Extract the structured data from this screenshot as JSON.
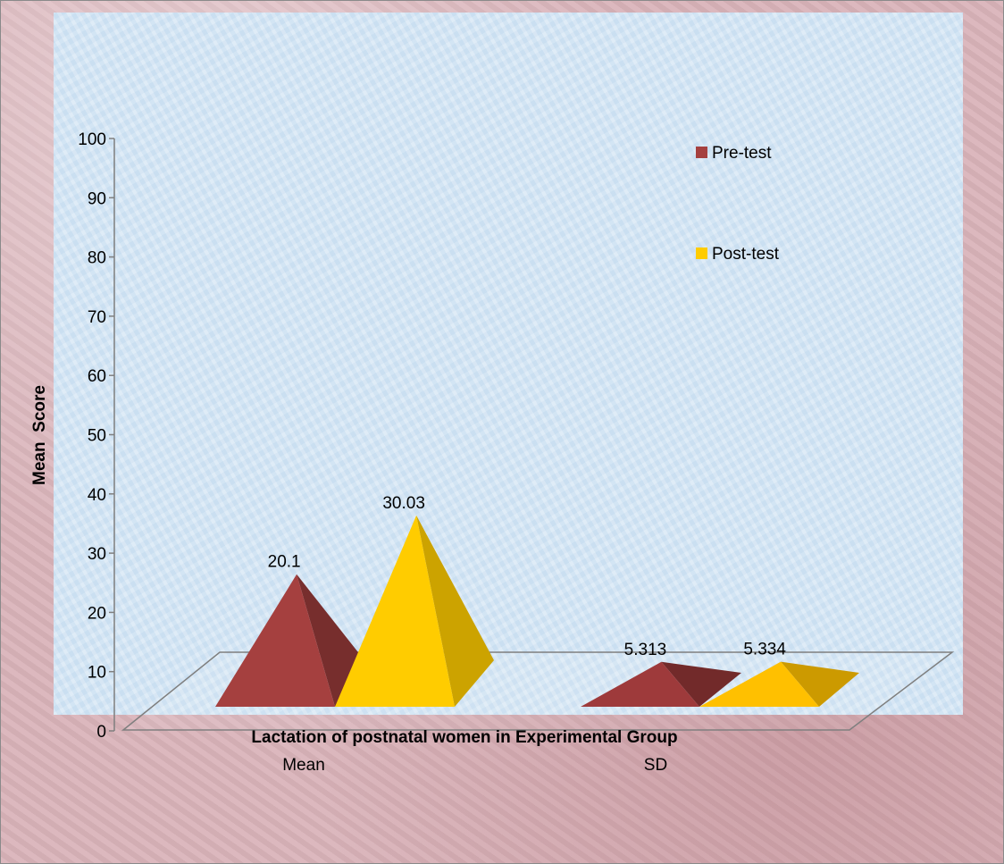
{
  "chart_data": {
    "type": "bar",
    "style": "3d-pyramid",
    "title": "",
    "xlabel": "Lactation of postnatal women in Experimental Group",
    "ylabel": "Mean  Score",
    "categories": [
      "Mean",
      "SD"
    ],
    "series": [
      {
        "name": "Pre-test",
        "values": [
          20.1,
          5.313
        ],
        "color": "#a5403f"
      },
      {
        "name": "Post-test",
        "values": [
          30.03,
          5.334
        ],
        "color": "#ffcc00"
      }
    ],
    "data_labels": [
      [
        "20.1",
        "5.313"
      ],
      [
        "30.03",
        "5.334"
      ]
    ],
    "ylim": [
      0,
      100
    ],
    "yticks": [
      "0",
      "10",
      "20",
      "30",
      "40",
      "50",
      "60",
      "70",
      "80",
      "90",
      "100"
    ],
    "legend_position": "top-right",
    "grid": false
  },
  "colors": {
    "background_outer": "#d9b3b9",
    "plot_area": "#d3e5f4",
    "pre_test": "#a5403f",
    "post_test": "#ffcc00"
  }
}
